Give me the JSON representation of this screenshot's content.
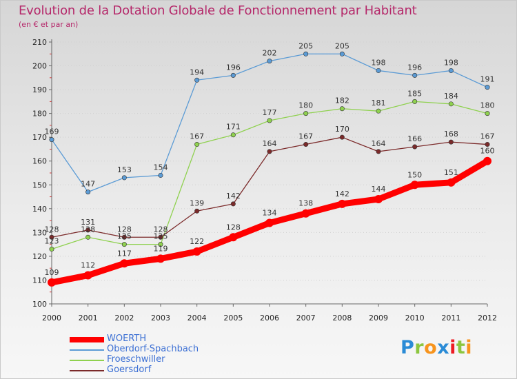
{
  "chart_data": {
    "type": "line",
    "title": "Evolution de la Dotation Globale de Fonctionnement par Habitant",
    "subtitle": "(en € et par an)",
    "xlabel": "",
    "ylabel": "",
    "x": [
      "2000",
      "2001",
      "2002",
      "2003",
      "2004",
      "2005",
      "2006",
      "2007",
      "2008",
      "2009",
      "2010",
      "2011",
      "2012"
    ],
    "ylim": [
      100,
      210
    ],
    "yticks": [
      100,
      110,
      120,
      130,
      140,
      150,
      160,
      170,
      180,
      190,
      200,
      210
    ],
    "grid": "horizontal dotted",
    "legend": "bottom-left",
    "series": [
      {
        "name": "WOERTH",
        "color": "#ff0000",
        "values": [
          109,
          112,
          117,
          119,
          122,
          128,
          134,
          138,
          142,
          144,
          150,
          151,
          160
        ]
      },
      {
        "name": "Oberdorf-Spachbach",
        "color": "#5b9bd5",
        "values": [
          169,
          147,
          153,
          154,
          194,
          196,
          202,
          205,
          205,
          198,
          196,
          198,
          191
        ]
      },
      {
        "name": "Froeschwiller",
        "color": "#8fd14f",
        "values": [
          123,
          128,
          125,
          125,
          167,
          171,
          177,
          180,
          182,
          181,
          185,
          184,
          180
        ]
      },
      {
        "name": "Goersdorf",
        "color": "#7b2a2a",
        "values": [
          128,
          131,
          128,
          128,
          139,
          142,
          164,
          167,
          170,
          164,
          166,
          168,
          167
        ]
      }
    ]
  },
  "branding": {
    "logo_text": "Proxiti"
  }
}
